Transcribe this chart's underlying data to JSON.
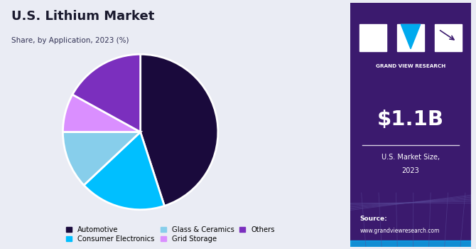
{
  "title": "U.S. Lithium Market",
  "subtitle": "Share, by Application, 2023 (%)",
  "slices": [
    {
      "label": "Automotive",
      "value": 45,
      "color": "#1a0a3c"
    },
    {
      "label": "Consumer Electronics",
      "value": 18,
      "color": "#00bfff"
    },
    {
      "label": "Glass & Ceramics",
      "value": 12,
      "color": "#87ceeb"
    },
    {
      "label": "Grid Storage",
      "value": 8,
      "color": "#da8fff"
    },
    {
      "label": "Others",
      "value": 17,
      "color": "#7b2fbe"
    }
  ],
  "bg_color": "#eaecf4",
  "right_panel_color": "#3b1a6e",
  "market_size": "$1.1B",
  "market_label1": "U.S. Market Size,",
  "market_label2": "2023",
  "source_label": "Source:",
  "source_url": "www.grandviewresearch.com",
  "brand_name": "GRAND VIEW RESEARCH",
  "start_angle": 90,
  "title_color": "#1a1a2e",
  "subtitle_color": "#333355",
  "legend_dot_colors": [
    "#1a0a3c",
    "#00bfff",
    "#87ceeb",
    "#da8fff",
    "#7b2fbe"
  ]
}
